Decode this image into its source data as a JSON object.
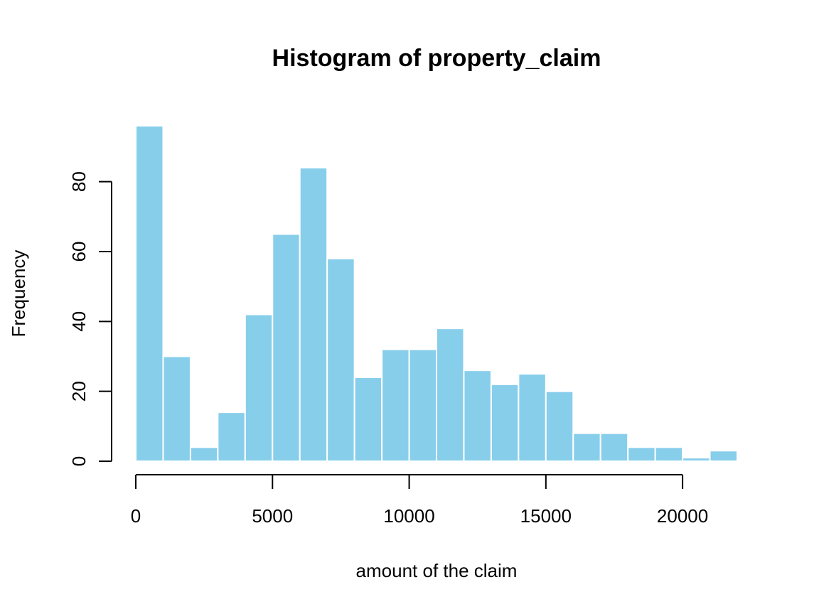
{
  "chart_data": {
    "type": "bar",
    "title": "Histogram of property_claim",
    "xlabel": "amount of the claim",
    "ylabel": "Frequency",
    "bin_edges": [
      0,
      1000,
      2000,
      3000,
      4000,
      5000,
      6000,
      7000,
      8000,
      9000,
      10000,
      11000,
      12000,
      13000,
      14000,
      15000,
      16000,
      17000,
      18000,
      19000,
      20000,
      21000,
      22000
    ],
    "values": [
      96,
      30,
      4,
      14,
      42,
      65,
      84,
      58,
      24,
      32,
      32,
      38,
      26,
      22,
      25,
      20,
      8,
      8,
      4,
      4,
      1,
      3
    ],
    "xlim": [
      0,
      22000
    ],
    "ylim": [
      0,
      96
    ],
    "x_ticks": [
      0,
      5000,
      10000,
      15000,
      20000
    ],
    "x_tick_labels": [
      "0",
      "5000",
      "10000",
      "15000",
      "20000"
    ],
    "y_ticks": [
      0,
      20,
      40,
      60,
      80
    ],
    "y_tick_labels": [
      "0",
      "20",
      "40",
      "60",
      "80"
    ],
    "bar_color": "#87CEEB",
    "bar_border_color": "#ffffff",
    "grid": false,
    "legend": "none"
  }
}
